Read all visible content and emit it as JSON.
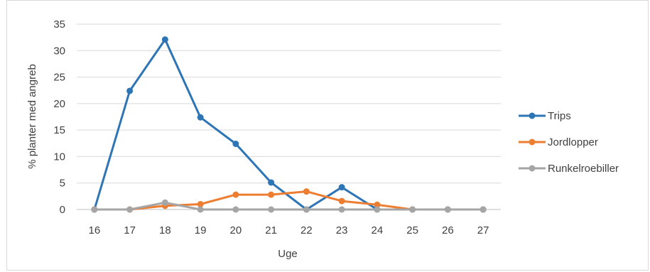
{
  "chart_data": {
    "type": "line",
    "title": "",
    "xlabel": "Uge",
    "ylabel": "% planter med angreb",
    "categories": [
      "16",
      "17",
      "18",
      "19",
      "20",
      "21",
      "22",
      "23",
      "24",
      "25",
      "26",
      "27"
    ],
    "ylim": [
      0,
      35
    ],
    "yticks": [
      "0",
      "5",
      "10",
      "15",
      "20",
      "25",
      "30",
      "35"
    ],
    "grid": "horizontal",
    "legend_position": "right",
    "series": [
      {
        "name": "Trips",
        "color": "#2e75b6",
        "values": [
          0,
          22.4,
          32.1,
          17.4,
          12.4,
          5.1,
          0,
          4.2,
          0,
          0,
          0,
          0
        ]
      },
      {
        "name": "Jordlopper",
        "color": "#ed7d31",
        "values": [
          0,
          0,
          0.7,
          1.0,
          2.8,
          2.8,
          3.4,
          1.6,
          0.9,
          0,
          0,
          0
        ]
      },
      {
        "name": "Runkelroebiller",
        "color": "#a5a5a5",
        "values": [
          0,
          0,
          1.3,
          0,
          0,
          0,
          0,
          0,
          0,
          0,
          0,
          0
        ]
      }
    ]
  }
}
